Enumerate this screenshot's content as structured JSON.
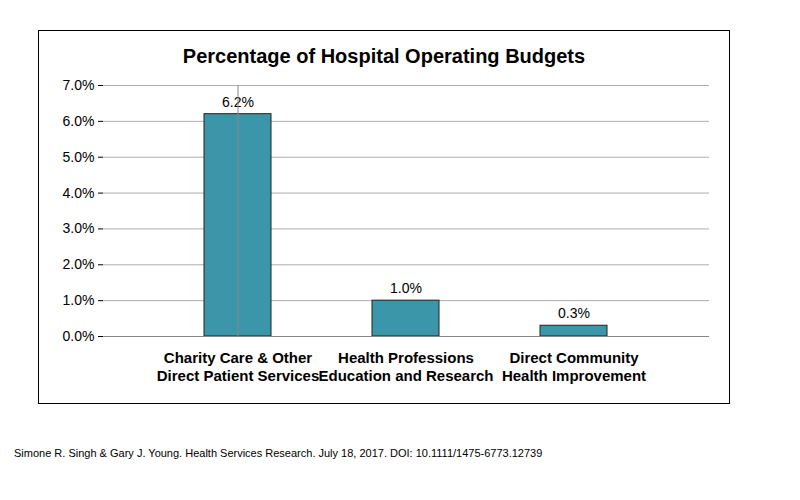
{
  "chart_data": {
    "type": "bar",
    "title": "Percentage of Hospital Operating Budgets",
    "caption": "Simone R. Singh & Gary J. Young. Health Services Research.  July 18, 2017. DOI: 10.1111/1475-6773.12739",
    "categories": [
      "Charity Care & Other Direct Patient Services",
      "Health Professions Education and Research",
      "Direct Community Health Improvement"
    ],
    "values": [
      6.2,
      1.0,
      0.3
    ],
    "value_labels": [
      "6.2%",
      "1.0%",
      "0.3%"
    ],
    "data_labels": true,
    "color": "#3b96a9",
    "ylim": [
      0,
      7
    ],
    "yticks": [
      {
        "value": 0,
        "label": "0.0%"
      },
      {
        "value": 1,
        "label": "1.0%"
      },
      {
        "value": 2,
        "label": "2.0%"
      },
      {
        "value": 3,
        "label": "3.0%"
      },
      {
        "value": 4,
        "label": "4.0%"
      },
      {
        "value": 5,
        "label": "5.0%"
      },
      {
        "value": 6,
        "label": "6.0%"
      },
      {
        "value": 7,
        "label": "7.0%"
      }
    ],
    "grid": true
  }
}
